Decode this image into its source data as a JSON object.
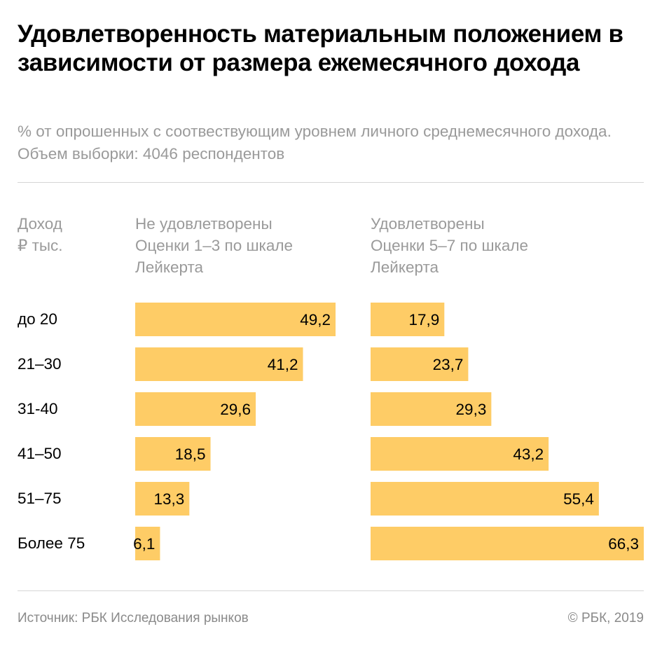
{
  "chart_data": {
    "type": "bar",
    "title": "Удовлетворенность материальным положением в зависимости от размера ежемесячного дохода",
    "subtitle": "% от опрошенных с соотвествующим уровнем личного среднемесячного дохода. Объем выборки: 4046 респондентов",
    "category_header": [
      "Доход",
      "₽ тыс."
    ],
    "categories": [
      "до 20",
      "21–30",
      "31-40",
      "41–50",
      "51–75",
      "Более 75"
    ],
    "series": [
      {
        "name": "Не удовлетворены",
        "header": [
          "Не удовлетворены",
          "Оценки 1–3 по шкале",
          "Лейкерта"
        ],
        "values": [
          49.2,
          41.2,
          29.6,
          18.5,
          13.3,
          6.1
        ]
      },
      {
        "name": "Удовлетворены",
        "header": [
          "Удовлетворены",
          "Оценки 5–7 по шкале",
          "Лейкерта"
        ],
        "values": [
          17.9,
          23.7,
          29.3,
          43.2,
          55.4,
          66.3
        ]
      }
    ],
    "value_labels": [
      [
        "49,2",
        "41,2",
        "29,6",
        "18,5",
        "13,3",
        "6,1"
      ],
      [
        "17,9",
        "23,7",
        "29,3",
        "43,2",
        "55,4",
        "66,3"
      ]
    ],
    "bar_color": "#fecc66",
    "grid": false,
    "legend": "none"
  },
  "footer": {
    "source": "Источник: РБК Исследования рынков",
    "copyright": "© РБК, 2019"
  }
}
